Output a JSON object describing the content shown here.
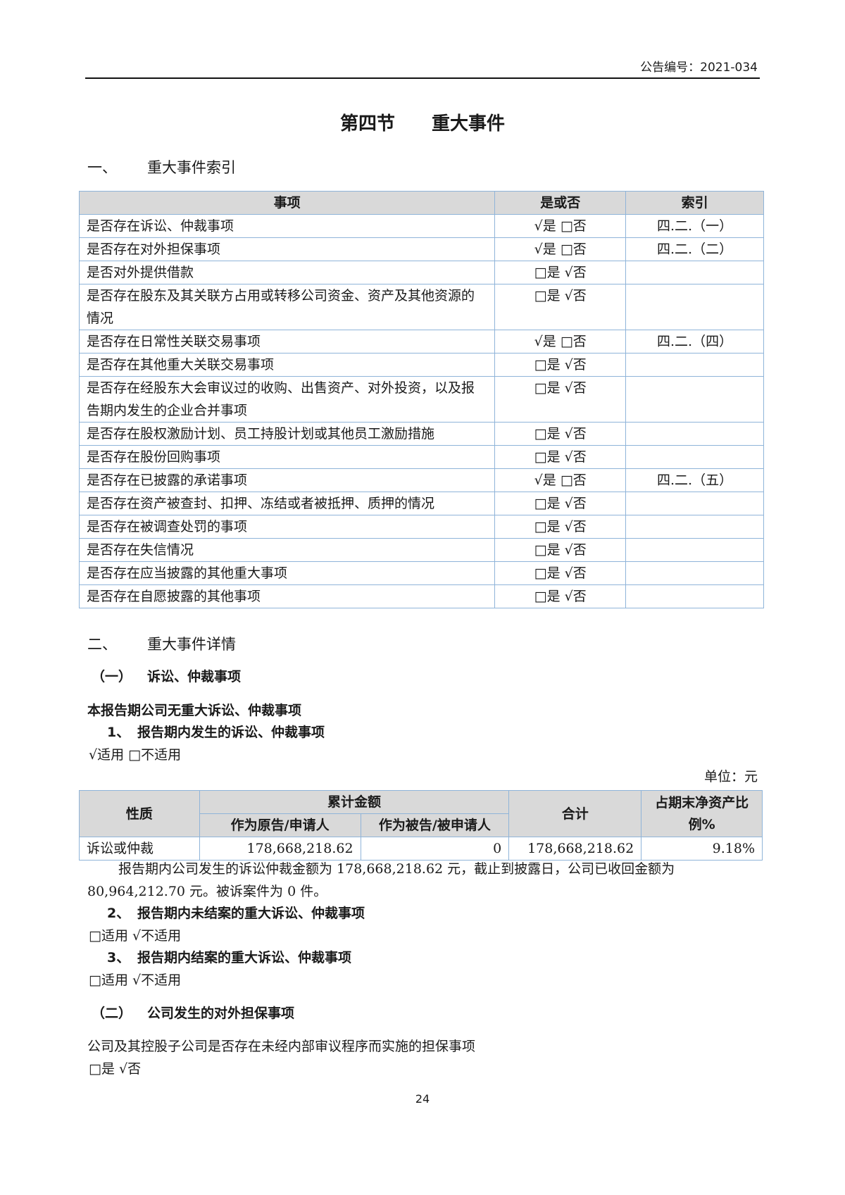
{
  "header": {
    "notice_no": "公告编号：2021-034"
  },
  "title": "第四节　　重大事件",
  "section1": {
    "num": "一、",
    "title": "重大事件索引"
  },
  "index_table": {
    "headers": [
      "事项",
      "是或否",
      "索引"
    ],
    "rows": [
      {
        "item": "是否存在诉讼、仲裁事项",
        "yesno": "√是 □否",
        "ref": "四.二.（一）"
      },
      {
        "item": "是否存在对外担保事项",
        "yesno": "√是 □否",
        "ref": "四.二.（二）"
      },
      {
        "item": "是否对外提供借款",
        "yesno": "□是 √否",
        "ref": ""
      },
      {
        "item": "是否存在股东及其关联方占用或转移公司资金、资产及其他资源的情况",
        "yesno": "□是 √否",
        "ref": ""
      },
      {
        "item": "是否存在日常性关联交易事项",
        "yesno": "√是 □否",
        "ref": "四.二.（四）"
      },
      {
        "item": "是否存在其他重大关联交易事项",
        "yesno": "□是 √否",
        "ref": ""
      },
      {
        "item": "是否存在经股东大会审议过的收购、出售资产、对外投资，以及报告期内发生的企业合并事项",
        "yesno": "□是 √否",
        "ref": ""
      },
      {
        "item": "是否存在股权激励计划、员工持股计划或其他员工激励措施",
        "yesno": "□是 √否",
        "ref": ""
      },
      {
        "item": "是否存在股份回购事项",
        "yesno": "□是 √否",
        "ref": ""
      },
      {
        "item": "是否存在已披露的承诺事项",
        "yesno": "√是 □否",
        "ref": "四.二.（五）"
      },
      {
        "item": "是否存在资产被查封、扣押、冻结或者被抵押、质押的情况",
        "yesno": "□是 √否",
        "ref": ""
      },
      {
        "item": "是否存在被调查处罚的事项",
        "yesno": "□是 √否",
        "ref": ""
      },
      {
        "item": "是否存在失信情况",
        "yesno": "□是 √否",
        "ref": ""
      },
      {
        "item": "是否存在应当披露的其他重大事项",
        "yesno": "□是 √否",
        "ref": ""
      },
      {
        "item": "是否存在自愿披露的其他事项",
        "yesno": "□是 √否",
        "ref": ""
      }
    ]
  },
  "section2": {
    "num": "二、",
    "title": "重大事件详情"
  },
  "sub1": {
    "num": "（一）",
    "title": "诉讼、仲裁事项"
  },
  "no_major": "本报告期公司无重大诉讼、仲裁事项",
  "item1": {
    "num": "1、",
    "title": "报告期内发生的诉讼、仲裁事项",
    "applicable": "√适用 □不适用"
  },
  "unit": "单位：元",
  "lit_table": {
    "h_nature": "性质",
    "h_cumulative": "累计金额",
    "h_plaintiff": "作为原告/申请人",
    "h_defendant": "作为被告/被申请人",
    "h_total": "合计",
    "h_ratio": "占期末净资产比例%",
    "row": {
      "nature": "诉讼或仲裁",
      "plaintiff": "178,668,218.62",
      "defendant": "0",
      "total": "178,668,218.62",
      "ratio": "9.18%"
    }
  },
  "para1": "报告期内公司发生的诉讼仲裁金额为 178,668,218.62 元，截止到披露日，公司已收回金额为",
  "para2": "80,964,212.70 元。被诉案件为 0 件。",
  "item2": {
    "num": "2、",
    "title": "报告期内未结案的重大诉讼、仲裁事项",
    "applicable": "□适用 √不适用"
  },
  "item3": {
    "num": "3、",
    "title": "报告期内结案的重大诉讼、仲裁事项",
    "applicable": "□适用 √不适用"
  },
  "sub2": {
    "num": "（二）",
    "title": "公司发生的对外担保事项"
  },
  "guarantee_q": "公司及其控股子公司是否存在未经内部审议程序而实施的担保事项",
  "guarantee_a": "□是 √否",
  "page_number": "24"
}
